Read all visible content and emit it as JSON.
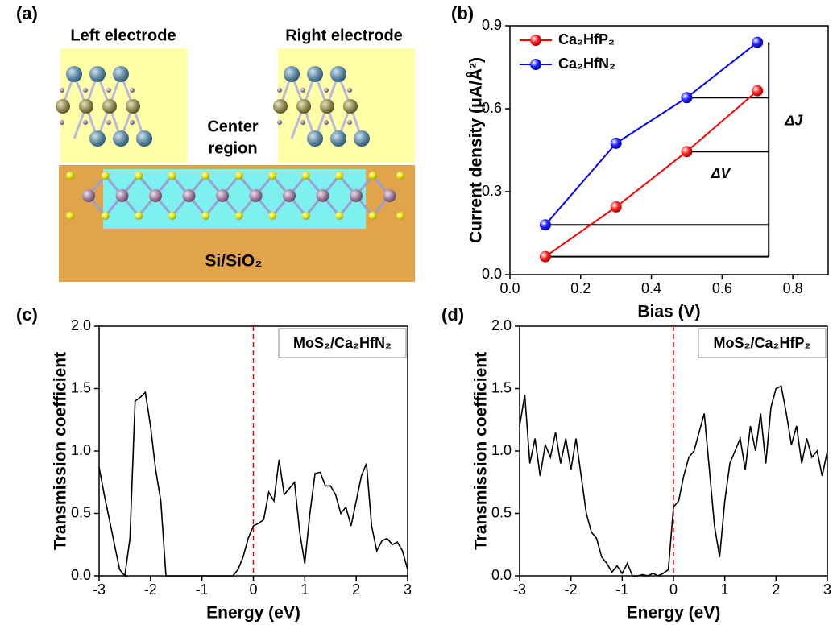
{
  "panel_labels": [
    "(a)",
    "(b)",
    "(c)",
    "(d)"
  ],
  "diagram": {
    "left_electrode": "Left electrode",
    "right_electrode": "Right electrode",
    "center_region": [
      "Center",
      "region"
    ],
    "substrate": "Si/SiO₂"
  },
  "chart_data": [
    {
      "type": "line",
      "markers": true,
      "xlabel": "Bias (V)",
      "ylabel": "Current density (μA/Å²)",
      "x": [
        0.1,
        0.3,
        0.5,
        0.7
      ],
      "series": [
        {
          "name": "Ca₂HfP₂",
          "color": "#ff0000",
          "values": [
            0.065,
            0.245,
            0.445,
            0.665
          ]
        },
        {
          "name": "Ca₂HfN₂",
          "color": "#0000ff",
          "values": [
            0.18,
            0.475,
            0.64,
            0.84
          ]
        }
      ],
      "legend": "upper left",
      "annotations": [
        "ΔJ",
        "ΔV"
      ],
      "xlim": [
        0,
        0.9
      ],
      "xticks": [
        {
          "value": 0,
          "label": "0.0"
        },
        {
          "value": 0.2,
          "label": "0.2"
        },
        {
          "value": 0.4,
          "label": "0.4"
        },
        {
          "value": 0.6,
          "label": "0.6"
        },
        {
          "value": 0.8,
          "label": "0.8"
        }
      ],
      "ylim": [
        0,
        0.9
      ],
      "yticks": [
        {
          "value": 0,
          "label": "0.0"
        },
        {
          "value": 0.3,
          "label": "0.3"
        },
        {
          "value": 0.6,
          "label": "0.6"
        },
        {
          "value": 0.9,
          "label": "0.9"
        }
      ]
    },
    {
      "type": "line",
      "markers": false,
      "xlabel": "Energy (eV)",
      "ylabel": "Transmission coefficient",
      "inset_label": "MoS₂/Ca₂HfN₂",
      "vline": {
        "x": 0,
        "color": "#ff0000"
      },
      "x": [
        -3,
        -2.9,
        -2.8,
        -2.7,
        -2.6,
        -2.5,
        -2.4,
        -2.3,
        -2.2,
        -2.1,
        -2,
        -1.9,
        -1.8,
        -1.7,
        -1.6,
        -1.5,
        -1.4,
        -1.3,
        -1.2,
        -1.1,
        -1,
        -0.9,
        -0.8,
        -0.7,
        -0.6,
        -0.5,
        -0.4,
        -0.3,
        -0.2,
        -0.1,
        0,
        0.1,
        0.2,
        0.3,
        0.4,
        0.5,
        0.6,
        0.7,
        0.8,
        0.9,
        1,
        1.1,
        1.2,
        1.3,
        1.4,
        1.5,
        1.6,
        1.7,
        1.8,
        1.9,
        2,
        2.1,
        2.2,
        2.3,
        2.4,
        2.5,
        2.6,
        2.7,
        2.8,
        2.9,
        3
      ],
      "series": [
        {
          "name": "MoS₂/Ca₂HfN₂",
          "color": "#000000",
          "values": [
            0.87,
            0.65,
            0.45,
            0.25,
            0.05,
            0,
            0.3,
            1.4,
            1.43,
            1.47,
            1.2,
            0.85,
            0.6,
            0,
            0,
            0,
            0,
            0,
            0,
            0,
            0,
            0,
            0,
            0,
            0,
            0,
            0,
            0.05,
            0.15,
            0.3,
            0.4,
            0.42,
            0.45,
            0.67,
            0.6,
            0.93,
            0.65,
            0.7,
            0.75,
            0.35,
            0.1,
            0.5,
            0.82,
            0.83,
            0.72,
            0.72,
            0.65,
            0.5,
            0.55,
            0.4,
            0.6,
            0.8,
            0.9,
            0.4,
            0.2,
            0.28,
            0.3,
            0.25,
            0.27,
            0.2,
            0.05
          ]
        }
      ],
      "xlim": [
        -3,
        3
      ],
      "xticks": [
        -3,
        -2,
        -1,
        0,
        1,
        2,
        3
      ],
      "ylim": [
        0,
        2
      ],
      "yticks": [
        {
          "value": 0,
          "label": "0.0"
        },
        {
          "value": 0.5,
          "label": "0.5"
        },
        {
          "value": 1,
          "label": "1.0"
        },
        {
          "value": 1.5,
          "label": "1.5"
        },
        {
          "value": 2,
          "label": "2.0"
        }
      ]
    },
    {
      "type": "line",
      "markers": false,
      "xlabel": "Energy (eV)",
      "ylabel": "Transmission coefficient",
      "inset_label": "MoS₂/Ca₂HfP₂",
      "vline": {
        "x": 0,
        "color": "#ff0000"
      },
      "x": [
        -3,
        -2.9,
        -2.8,
        -2.7,
        -2.6,
        -2.5,
        -2.4,
        -2.3,
        -2.2,
        -2.1,
        -2,
        -1.9,
        -1.8,
        -1.7,
        -1.6,
        -1.5,
        -1.4,
        -1.3,
        -1.2,
        -1.1,
        -1,
        -0.9,
        -0.8,
        -0.7,
        -0.6,
        -0.5,
        -0.4,
        -0.3,
        -0.2,
        -0.1,
        0,
        0.1,
        0.2,
        0.3,
        0.4,
        0.5,
        0.6,
        0.7,
        0.8,
        0.9,
        1,
        1.1,
        1.2,
        1.3,
        1.4,
        1.5,
        1.6,
        1.7,
        1.8,
        1.9,
        2,
        2.1,
        2.2,
        2.3,
        2.4,
        2.5,
        2.6,
        2.7,
        2.8,
        2.9,
        3
      ],
      "series": [
        {
          "name": "MoS₂/Ca₂HfP₂",
          "color": "#000000",
          "values": [
            1.2,
            1.45,
            0.9,
            1.1,
            0.8,
            1.05,
            0.95,
            1.15,
            0.9,
            1.1,
            0.85,
            1.1,
            0.8,
            0.5,
            0.35,
            0.3,
            0.15,
            0.1,
            0.03,
            0.08,
            0.02,
            0.1,
            0,
            0,
            0.01,
            0,
            0.02,
            0,
            0.02,
            0.05,
            0.55,
            0.6,
            0.8,
            0.95,
            1,
            1.15,
            1.3,
            0.85,
            0.4,
            0.15,
            0.6,
            0.9,
            1,
            1.1,
            0.85,
            1.2,
            1,
            1.3,
            0.9,
            1.35,
            1.5,
            1.52,
            1.3,
            1.05,
            1.2,
            0.9,
            1.1,
            0.95,
            1,
            0.8,
            1
          ]
        }
      ],
      "xlim": [
        -3,
        3
      ],
      "xticks": [
        -3,
        -2,
        -1,
        0,
        1,
        2,
        3
      ],
      "ylim": [
        0,
        2
      ],
      "yticks": [
        {
          "value": 0,
          "label": "0.0"
        },
        {
          "value": 0.5,
          "label": "0.5"
        },
        {
          "value": 1,
          "label": "1.0"
        },
        {
          "value": 1.5,
          "label": "1.5"
        },
        {
          "value": 2,
          "label": "2.0"
        }
      ]
    }
  ]
}
